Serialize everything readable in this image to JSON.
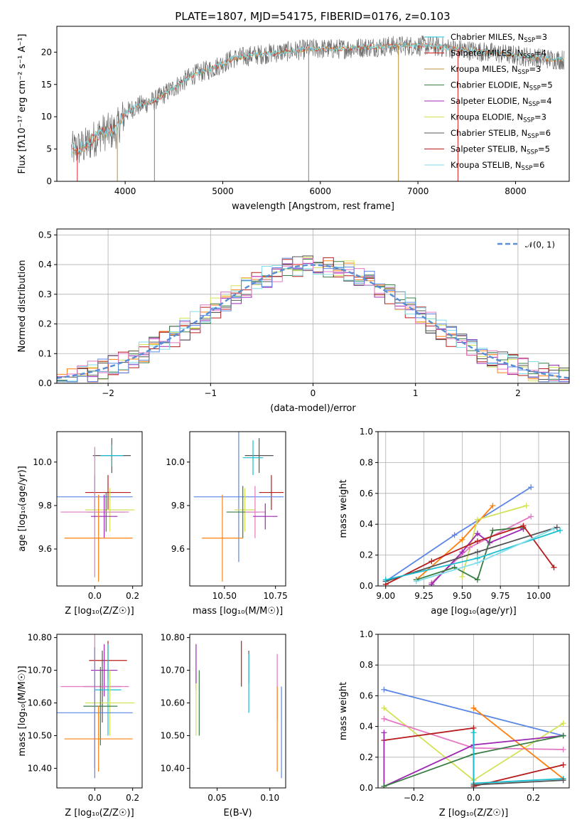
{
  "figure": {
    "title": "PLATE=1807, MJD=54175, FIBERID=0176, z=0.103"
  },
  "colors": {
    "model_palette": [
      "#1f77b4",
      "#d62728",
      "#8c564b",
      "#2ca02c",
      "#9467bd",
      "#bcbd22",
      "#7f7f7f",
      "#ff7f0e",
      "#17becf"
    ],
    "gaussian": "#5a8fd6",
    "grid": "#b0b0b0"
  },
  "chart_data": [
    {
      "id": "spectrum",
      "type": "line",
      "xlabel": "wavelength [Angstrom, rest frame]",
      "ylabel": "Flux [fλ10⁻¹⁷ erg cm⁻² s⁻¹ A⁻¹]",
      "xlim": [
        3300,
        8550
      ],
      "ylim": [
        0,
        24
      ],
      "xticks": [
        4000,
        5000,
        6000,
        7000,
        8000
      ],
      "yticks": [
        0,
        5,
        10,
        15,
        20
      ],
      "grid": false,
      "legend_position": "right",
      "legend": [
        {
          "label": "Chabrier MILES, N",
          "sub": "SSP",
          "tail": "=3",
          "color": "#17becf"
        },
        {
          "label": "Salpeter MILES, N",
          "sub": "SSP",
          "tail": "=4",
          "color": "#d62728"
        },
        {
          "label": "Kroupa MILES, N",
          "sub": "SSP",
          "tail": "=3",
          "color": "#bc8f3a"
        },
        {
          "label": "Chabrier ELODIE, N",
          "sub": "SSP",
          "tail": "=5",
          "color": "#3a7d44"
        },
        {
          "label": "Salpeter ELODIE, N",
          "sub": "SSP",
          "tail": "=4",
          "color": "#9c27b0"
        },
        {
          "label": "Kroupa ELODIE, N",
          "sub": "SSP",
          "tail": "=3",
          "color": "#d4e157"
        },
        {
          "label": "Chabrier STELIB, N",
          "sub": "SSP",
          "tail": "=6",
          "color": "#555555"
        },
        {
          "label": "Salpeter STELIB, N",
          "sub": "SSP",
          "tail": "=5",
          "color": "#b71c1c"
        },
        {
          "label": "Kroupa STELIB, N",
          "sub": "SSP",
          "tail": "=6",
          "color": "#80deea"
        }
      ],
      "continuum": {
        "x": [
          3450,
          3600,
          3750,
          3900,
          4000,
          4100,
          4300,
          4500,
          4700,
          4900,
          5100,
          5300,
          5600,
          5900,
          6200,
          6500,
          6800,
          7100,
          7400,
          7700,
          8000,
          8300,
          8500
        ],
        "y": [
          4.8,
          5.5,
          7.5,
          7.8,
          10.5,
          11.5,
          12.5,
          14.5,
          16.5,
          17.5,
          19.0,
          19.5,
          20.0,
          20.5,
          20.5,
          20.8,
          21.0,
          21.0,
          20.5,
          20.0,
          19.5,
          19.0,
          18.8
        ]
      },
      "dropouts": [
        {
          "x": 3510,
          "color": "#d62728"
        },
        {
          "x": 3920,
          "color": "#bc8f3a"
        },
        {
          "x": 4300,
          "color": "#7f7f7f"
        },
        {
          "x": 5880,
          "color": "#7f7f7f"
        },
        {
          "x": 6800,
          "color": "#bc8f3a"
        },
        {
          "x": 7410,
          "color": "#d62728"
        }
      ]
    },
    {
      "id": "residual-distribution",
      "type": "line",
      "xlabel": "(data-model)/error",
      "ylabel": "Normed distribution",
      "xlim": [
        -2.5,
        2.5
      ],
      "ylim": [
        0,
        0.52
      ],
      "xticks": [
        -2,
        -1,
        0,
        1,
        2
      ],
      "yticks": [
        0.0,
        0.1,
        0.2,
        0.3,
        0.4,
        0.5
      ],
      "grid": true,
      "legend_position": "top-right",
      "legend": [
        {
          "label": "𝒩(0, 1)",
          "color": "#5a8fd6",
          "style": "dashed"
        }
      ],
      "bin_width": 0.1
    },
    {
      "id": "age-vs-Z",
      "type": "scatter",
      "xlabel": "Z [log₁₀(Z/Z☉)]",
      "ylabel": "age  [log₁₀(age/yr)]",
      "xlim": [
        -0.2,
        0.25
      ],
      "ylim": [
        9.43,
        10.14
      ],
      "xticks": [
        0.0,
        0.2
      ],
      "yticks": [
        9.6,
        9.8,
        10.0
      ],
      "grid": false,
      "points": [
        {
          "x": 0.09,
          "y": 10.03,
          "xerr": 0.1,
          "yerr": 0.08,
          "color": "#555555"
        },
        {
          "x": 0.09,
          "y": 10.03,
          "xerr": 0.06,
          "yerr": 0.05,
          "color": "#17becf"
        },
        {
          "x": 0.07,
          "y": 9.86,
          "xerr": 0.12,
          "yerr": 0.08,
          "color": "#b71c1c"
        },
        {
          "x": 0.0,
          "y": 9.84,
          "xerr": 0.2,
          "yerr": 0.1,
          "color": "#5b86e5"
        },
        {
          "x": 0.08,
          "y": 9.78,
          "xerr": 0.13,
          "yerr": 0.1,
          "color": "#d4e157"
        },
        {
          "x": 0.06,
          "y": 9.77,
          "xerr": 0.1,
          "yerr": 0.09,
          "color": "#3a7d44"
        },
        {
          "x": 0.0,
          "y": 9.77,
          "xerr": 0.18,
          "yerr": 0.3,
          "color": "#e377c2"
        },
        {
          "x": 0.05,
          "y": 9.75,
          "xerr": 0.07,
          "yerr": 0.1,
          "color": "#9c27b0"
        },
        {
          "x": 0.02,
          "y": 9.65,
          "xerr": 0.18,
          "yerr": 0.2,
          "color": "#ff7f0e"
        }
      ]
    },
    {
      "id": "age-vs-mass",
      "type": "scatter",
      "xlabel": "mass [log₁₀(M/M☉)]",
      "ylabel": "",
      "xlim": [
        10.33,
        10.8
      ],
      "ylim": [
        9.43,
        10.14
      ],
      "xticks": [
        10.5,
        10.75
      ],
      "yticks": [
        9.6,
        9.8,
        10.0
      ],
      "grid": false,
      "points": [
        {
          "x": 10.67,
          "y": 10.03,
          "xerr": 0.07,
          "yerr": 0.08,
          "color": "#555555"
        },
        {
          "x": 10.64,
          "y": 10.02,
          "xerr": 0.05,
          "yerr": 0.08,
          "color": "#17becf"
        },
        {
          "x": 10.73,
          "y": 9.86,
          "xerr": 0.06,
          "yerr": 0.08,
          "color": "#b71c1c"
        },
        {
          "x": 10.57,
          "y": 9.84,
          "xerr": 0.22,
          "yerr": 0.3,
          "color": "#5b86e5"
        },
        {
          "x": 10.6,
          "y": 9.78,
          "xerr": 0.05,
          "yerr": 0.1,
          "color": "#d4e157"
        },
        {
          "x": 10.59,
          "y": 9.77,
          "xerr": 0.08,
          "yerr": 0.12,
          "color": "#3a7d44"
        },
        {
          "x": 10.65,
          "y": 9.77,
          "xerr": 0.05,
          "yerr": 0.12,
          "color": "#e377c2"
        },
        {
          "x": 10.7,
          "y": 9.75,
          "xerr": 0.06,
          "yerr": 0.06,
          "color": "#9c27b0"
        },
        {
          "x": 10.49,
          "y": 9.65,
          "xerr": 0.1,
          "yerr": 0.2,
          "color": "#ff7f0e"
        }
      ]
    },
    {
      "id": "mass-weight-vs-age",
      "type": "line",
      "xlabel": "age  [log₁₀(age/yr)]",
      "ylabel": "mass weight",
      "xlim": [
        8.95,
        10.2
      ],
      "ylim": [
        0,
        1
      ],
      "xticks": [
        9.0,
        9.25,
        9.5,
        9.75,
        10.0
      ],
      "yticks": [
        0.0,
        0.2,
        0.4,
        0.6,
        0.8,
        1.0
      ],
      "grid": true,
      "series": [
        {
          "color": "#5b86e5",
          "x": [
            9.0,
            9.45,
            9.95
          ],
          "y": [
            0.03,
            0.33,
            0.64
          ]
        },
        {
          "color": "#ff7f0e",
          "x": [
            9.2,
            9.5,
            9.7
          ],
          "y": [
            0.04,
            0.3,
            0.52
          ]
        },
        {
          "color": "#d4e157",
          "x": [
            9.5,
            9.6,
            9.92
          ],
          "y": [
            0.06,
            0.43,
            0.52
          ]
        },
        {
          "color": "#e377c2",
          "x": [
            9.3,
            9.55,
            9.95
          ],
          "y": [
            0.02,
            0.25,
            0.45
          ]
        },
        {
          "color": "#9c27b0",
          "x": [
            9.3,
            9.5,
            9.6,
            9.68,
            9.9
          ],
          "y": [
            0.01,
            0.22,
            0.34,
            0.28,
            0.37
          ]
        },
        {
          "color": "#3a7d44",
          "x": [
            9.2,
            9.45,
            9.6,
            9.7,
            9.9
          ],
          "y": [
            0.04,
            0.12,
            0.04,
            0.36,
            0.38
          ]
        },
        {
          "color": "#555555",
          "x": [
            9.0,
            9.6,
            10.12
          ],
          "y": [
            0.03,
            0.22,
            0.38
          ]
        },
        {
          "color": "#b71c1c",
          "x": [
            9.0,
            9.3,
            9.6,
            9.9,
            10.1
          ],
          "y": [
            0.01,
            0.16,
            0.29,
            0.39,
            0.12
          ]
        },
        {
          "color": "#17becf",
          "x": [
            9.0,
            9.6,
            10.14
          ],
          "y": [
            0.04,
            0.18,
            0.36
          ]
        },
        {
          "color": "#80deea",
          "x": [
            9.2,
            9.6,
            10.1
          ],
          "y": [
            0.03,
            0.15,
            0.37
          ]
        }
      ]
    },
    {
      "id": "mass-vs-Z",
      "type": "scatter",
      "xlabel": "Z [log₁₀(Z/Z☉)]",
      "ylabel": "mass [log₁₀(M/M☉)]",
      "xlim": [
        -0.2,
        0.25
      ],
      "ylim": [
        10.34,
        10.81
      ],
      "xticks": [
        0.0,
        0.2
      ],
      "yticks": [
        10.4,
        10.5,
        10.6,
        10.7,
        10.8
      ],
      "grid": false,
      "points": [
        {
          "x": 0.07,
          "y": 10.73,
          "xerr": 0.1,
          "yerr": 0.06,
          "color": "#b71c1c"
        },
        {
          "x": 0.05,
          "y": 10.7,
          "xerr": 0.07,
          "yerr": 0.08,
          "color": "#9c27b0"
        },
        {
          "x": 0.04,
          "y": 10.65,
          "xerr": 0.1,
          "yerr": 0.11,
          "color": "#555555"
        },
        {
          "x": 0.0,
          "y": 10.65,
          "xerr": 0.18,
          "yerr": 0.25,
          "color": "#e377c2"
        },
        {
          "x": 0.07,
          "y": 10.64,
          "xerr": 0.07,
          "yerr": 0.14,
          "color": "#17becf"
        },
        {
          "x": 0.08,
          "y": 10.6,
          "xerr": 0.13,
          "yerr": 0.1,
          "color": "#d4e157"
        },
        {
          "x": 0.03,
          "y": 10.59,
          "xerr": 0.09,
          "yerr": 0.12,
          "color": "#3a7d44"
        },
        {
          "x": 0.0,
          "y": 10.57,
          "xerr": 0.2,
          "yerr": 0.2,
          "color": "#5b86e5"
        },
        {
          "x": 0.02,
          "y": 10.49,
          "xerr": 0.18,
          "yerr": 0.1,
          "color": "#ff7f0e"
        }
      ]
    },
    {
      "id": "mass-vs-ebv",
      "type": "scatter",
      "xlabel": "E(B-V)",
      "ylabel": "",
      "xlim": [
        0.024,
        0.115
      ],
      "ylim": [
        10.34,
        10.81
      ],
      "xticks": [
        0.05,
        0.1
      ],
      "yticks": [
        10.4,
        10.5,
        10.6,
        10.7,
        10.8
      ],
      "grid": false,
      "points": [
        {
          "x": 0.03,
          "y": 10.71,
          "yerr": 0.07,
          "color": "#9c27b0"
        },
        {
          "x": 0.03,
          "y": 10.58,
          "yerr": 0.08,
          "color": "#d4e157"
        },
        {
          "x": 0.033,
          "y": 10.6,
          "yerr": 0.1,
          "color": "#3a7d44"
        },
        {
          "x": 0.073,
          "y": 10.72,
          "yerr": 0.07,
          "color": "#b71c1c"
        },
        {
          "x": 0.08,
          "y": 10.71,
          "yerr": 0.05,
          "color": "#555555"
        },
        {
          "x": 0.08,
          "y": 10.66,
          "yerr": 0.09,
          "color": "#17becf"
        },
        {
          "x": 0.107,
          "y": 10.65,
          "yerr": 0.1,
          "color": "#e377c2"
        },
        {
          "x": 0.107,
          "y": 10.52,
          "yerr": 0.13,
          "color": "#ff7f0e"
        },
        {
          "x": 0.111,
          "y": 10.51,
          "yerr": 0.14,
          "color": "#5b86e5"
        }
      ]
    },
    {
      "id": "mass-weight-vs-Z",
      "type": "line",
      "xlabel": "Z [log₁₀(Z/Z☉)]",
      "ylabel": "mass weight",
      "xlim": [
        -0.32,
        0.32
      ],
      "ylim": [
        0,
        1
      ],
      "xticks": [
        -0.2,
        0.0,
        0.2
      ],
      "yticks": [
        0.0,
        0.2,
        0.4,
        0.6,
        0.8,
        1.0
      ],
      "grid": true,
      "series": [
        {
          "color": "#5b86e5",
          "x": [
            -0.3,
            0.3
          ],
          "y": [
            0.64,
            0.34
          ]
        },
        {
          "color": "#d4e157",
          "x": [
            -0.3,
            0.0,
            0.3
          ],
          "y": [
            0.52,
            0.05,
            0.42
          ]
        },
        {
          "color": "#e377c2",
          "x": [
            -0.3,
            0.0,
            0.3
          ],
          "y": [
            0.45,
            0.26,
            0.25
          ]
        },
        {
          "color": "#ff7f0e",
          "x": [
            0.0,
            0.0,
            0.3
          ],
          "y": [
            0.52,
            0.52,
            0.06
          ]
        },
        {
          "color": "#b71c1c",
          "x": [
            -0.3,
            0.0,
            0.0,
            0.3
          ],
          "y": [
            0.31,
            0.39,
            0.01,
            0.15
          ]
        },
        {
          "color": "#9c27b0",
          "x": [
            -0.3,
            -0.3,
            0.0,
            0.3
          ],
          "y": [
            0.36,
            0.01,
            0.28,
            0.34
          ]
        },
        {
          "color": "#3a7d44",
          "x": [
            -0.3,
            0.0,
            0.3
          ],
          "y": [
            0.01,
            0.22,
            0.34
          ]
        },
        {
          "color": "#17becf",
          "x": [
            0.0,
            0.0,
            0.3
          ],
          "y": [
            0.36,
            0.03,
            0.06
          ]
        },
        {
          "color": "#555555",
          "x": [
            0.0,
            0.3
          ],
          "y": [
            0.02,
            0.05
          ]
        }
      ]
    }
  ]
}
